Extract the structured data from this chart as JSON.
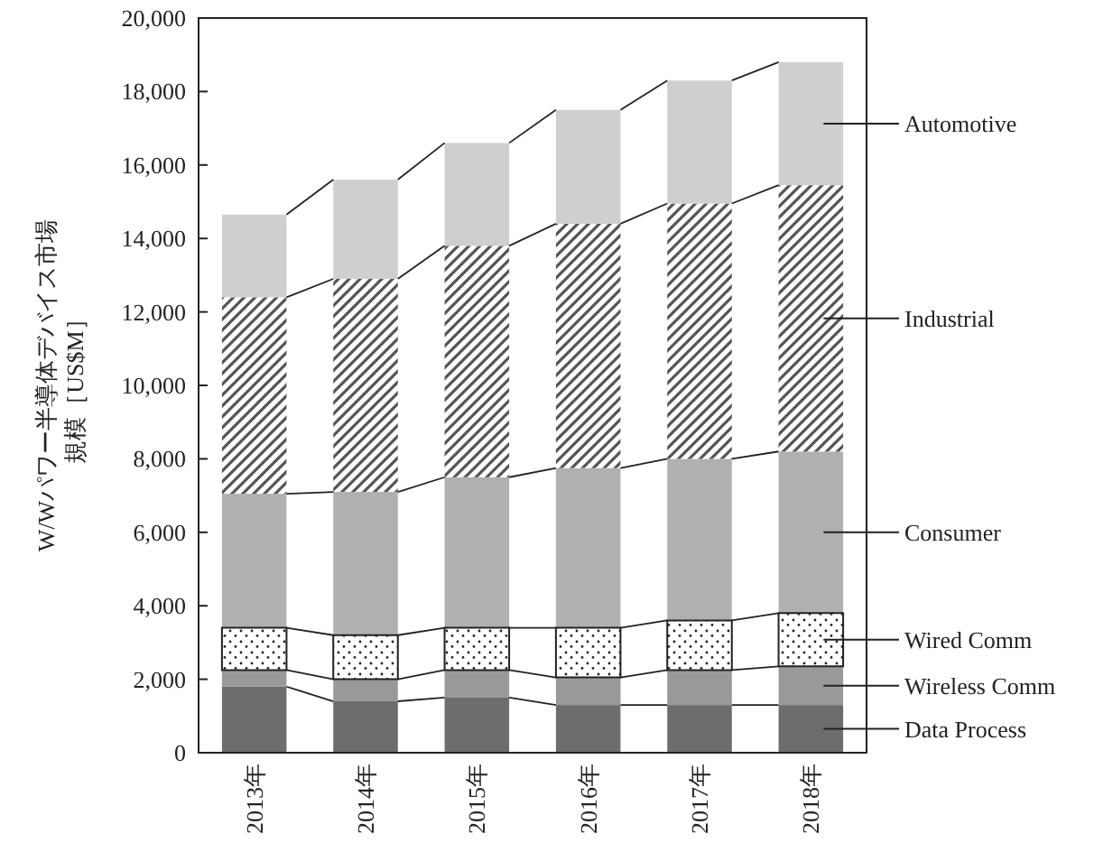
{
  "chart_data": {
    "type": "bar",
    "stacked": true,
    "ylabel": "W/Wパワー半導体デバイス市場規模［US$M］",
    "categories": [
      "2013年",
      "2014年",
      "2015年",
      "2016年",
      "2017年",
      "2018年"
    ],
    "ylim": [
      0,
      20000
    ],
    "yticks": [
      {
        "value": 0,
        "label": "0"
      },
      {
        "value": 2000,
        "label": "2,000"
      },
      {
        "value": 4000,
        "label": "4,000"
      },
      {
        "value": 6000,
        "label": "6,000"
      },
      {
        "value": 8000,
        "label": "8,000"
      },
      {
        "value": 10000,
        "label": "10,000"
      },
      {
        "value": 12000,
        "label": "12,000"
      },
      {
        "value": 14000,
        "label": "14,000"
      },
      {
        "value": 16000,
        "label": "16,000"
      },
      {
        "value": 18000,
        "label": "18,000"
      },
      {
        "value": 20000,
        "label": "20,000"
      }
    ],
    "legend": false,
    "series": [
      {
        "name": "Data Process",
        "color": "#6d6d70",
        "values": [
          1800,
          1400,
          1500,
          1300,
          1300,
          1300
        ]
      },
      {
        "name": "Wireless Comm",
        "color": "#99999c",
        "values": [
          450,
          600,
          750,
          750,
          950,
          1050
        ]
      },
      {
        "name": "Wired Comm",
        "color": "#ffffff",
        "values": [
          1150,
          1200,
          1150,
          1350,
          1350,
          1450
        ]
      },
      {
        "name": "Consumer",
        "color": "#b0b0b3",
        "values": [
          3650,
          3900,
          4100,
          4350,
          4400,
          4400
        ]
      },
      {
        "name": "Industrial",
        "color": "#555555",
        "values": [
          5350,
          5800,
          6300,
          6650,
          6950,
          7250
        ]
      },
      {
        "name": "Automotive",
        "color": "#cfcfd1",
        "values": [
          2250,
          2700,
          2800,
          3100,
          3350,
          3350
        ]
      }
    ]
  }
}
